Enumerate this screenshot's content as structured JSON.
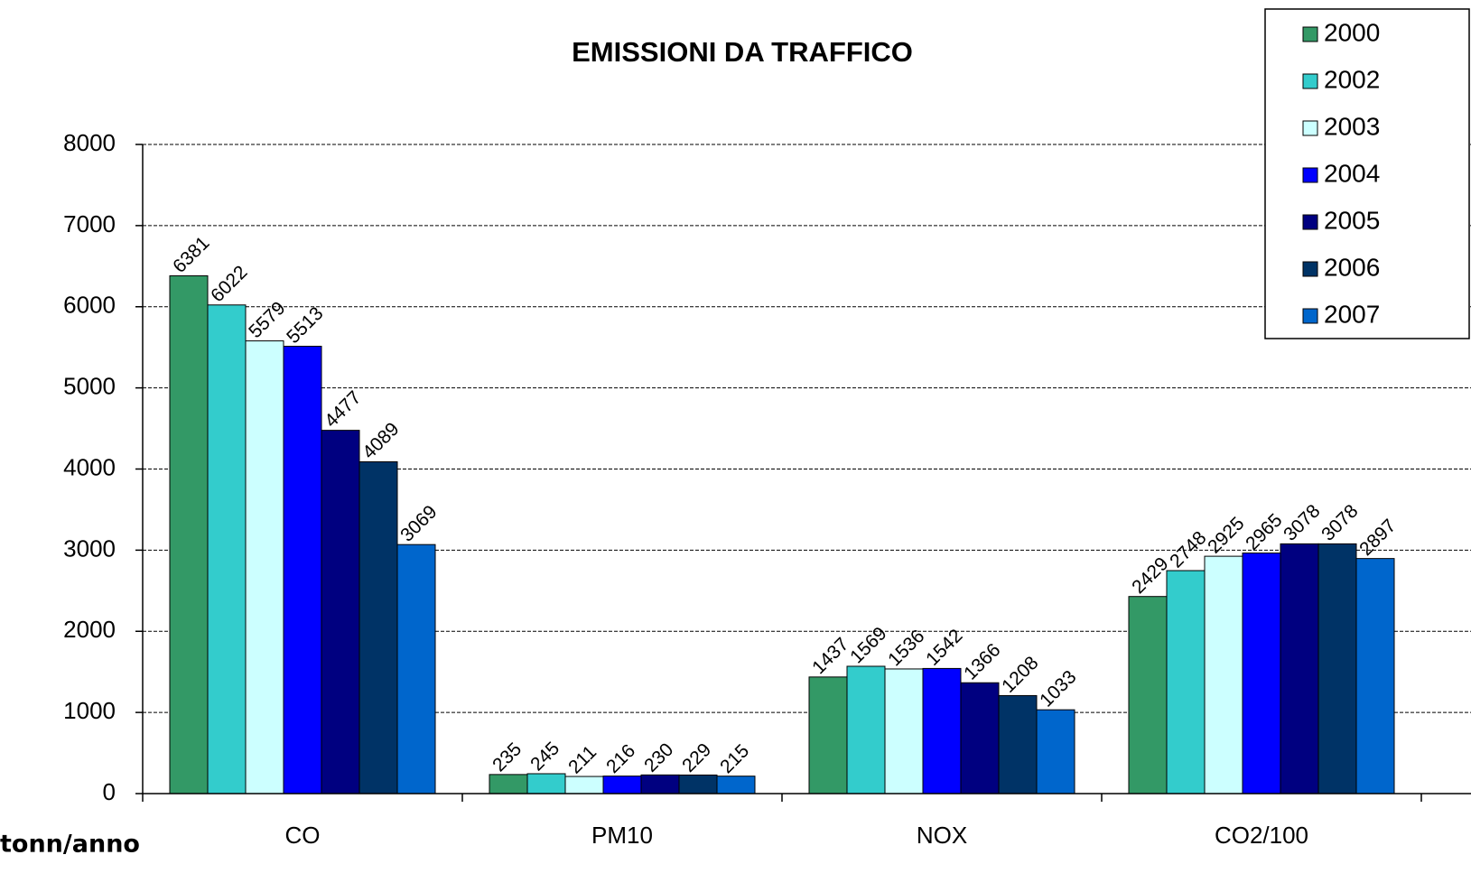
{
  "chart_data": {
    "type": "bar",
    "title": "EMISSIONI DA TRAFFICO",
    "y_label": "tonn/anno",
    "categories": [
      "CO",
      "PM10",
      "NOX",
      "CO2/100"
    ],
    "series": [
      {
        "name": "2000",
        "color": "#339966",
        "values": [
          6381,
          235,
          1437,
          2429
        ]
      },
      {
        "name": "2002",
        "color": "#33CCCC",
        "values": [
          6022,
          245,
          1569,
          2748
        ]
      },
      {
        "name": "2003",
        "color": "#CCFFFF",
        "values": [
          5579,
          211,
          1536,
          2925
        ]
      },
      {
        "name": "2004",
        "color": "#0000FF",
        "values": [
          5513,
          216,
          1542,
          2965
        ]
      },
      {
        "name": "2005",
        "color": "#000080",
        "values": [
          4477,
          230,
          1366,
          3078
        ]
      },
      {
        "name": "2006",
        "color": "#003366",
        "values": [
          4089,
          229,
          1208,
          3078
        ]
      },
      {
        "name": "2007",
        "color": "#0066CC",
        "values": [
          3069,
          215,
          1033,
          2897
        ]
      }
    ],
    "ylim": [
      0,
      8000
    ],
    "yticks": [
      0,
      1000,
      2000,
      3000,
      4000,
      5000,
      6000,
      7000,
      8000
    ],
    "grid": true,
    "legend": "top-right"
  }
}
